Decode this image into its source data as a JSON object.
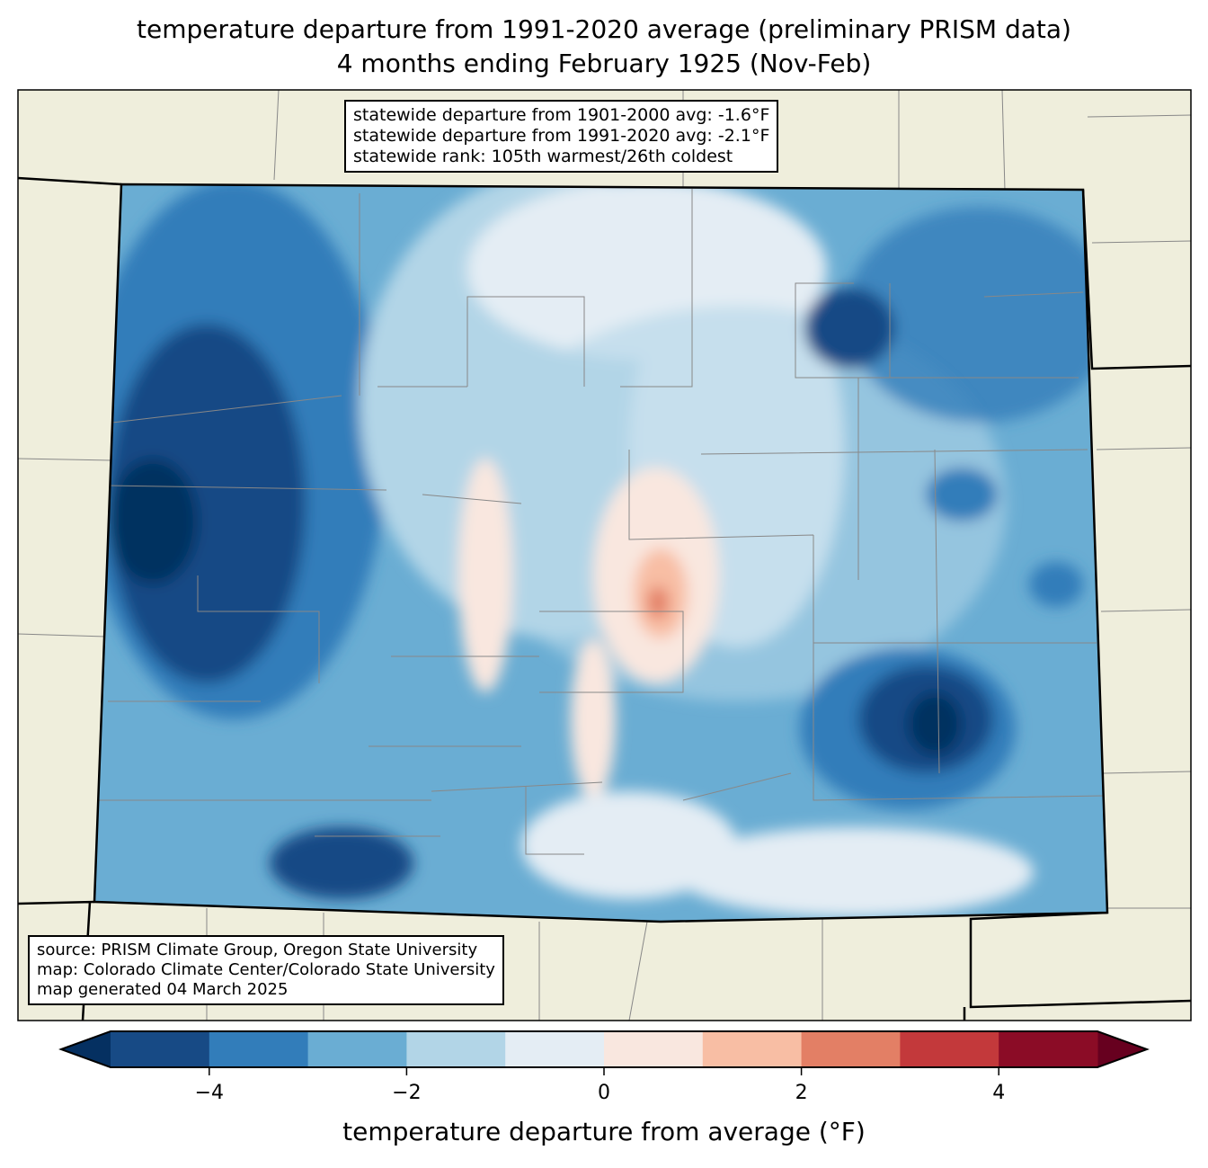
{
  "title_line1": "temperature departure from 1991-2020 average (preliminary PRISM data)",
  "title_line2": "4 months ending February 1925 (Nov-Feb)",
  "stats_box": {
    "line1": "statewide departure from 1901-2000 avg: -1.6°F",
    "line2": "statewide departure from 1991-2020 avg: -2.1°F",
    "line3": "statewide rank: 105th warmest/26th coldest"
  },
  "source_box": {
    "line1": "source: PRISM Climate Group, Oregon State University",
    "line2": "map: Colorado Climate Center/Colorado State University",
    "line3": "map generated 04 March 2025"
  },
  "chart_data": {
    "type": "heatmap",
    "colorbar": {
      "label": "temperature departure from average (°F)",
      "bounds": [
        -5,
        -4,
        -3,
        -2,
        -1,
        0,
        1,
        2,
        3,
        4,
        5
      ],
      "colors": [
        "#174a85",
        "#327dba",
        "#6aadd3",
        "#b2d5e7",
        "#e4edf4",
        "#f9e7df",
        "#f8bea4",
        "#e37f65",
        "#c3393b",
        "#8b0c26"
      ],
      "under_color": "#053061",
      "over_color": "#67001f",
      "ticks": [
        -4,
        -2,
        0,
        2,
        4
      ],
      "tick_labels": [
        "−4",
        "−2",
        "0",
        "2",
        "4"
      ]
    }
  }
}
